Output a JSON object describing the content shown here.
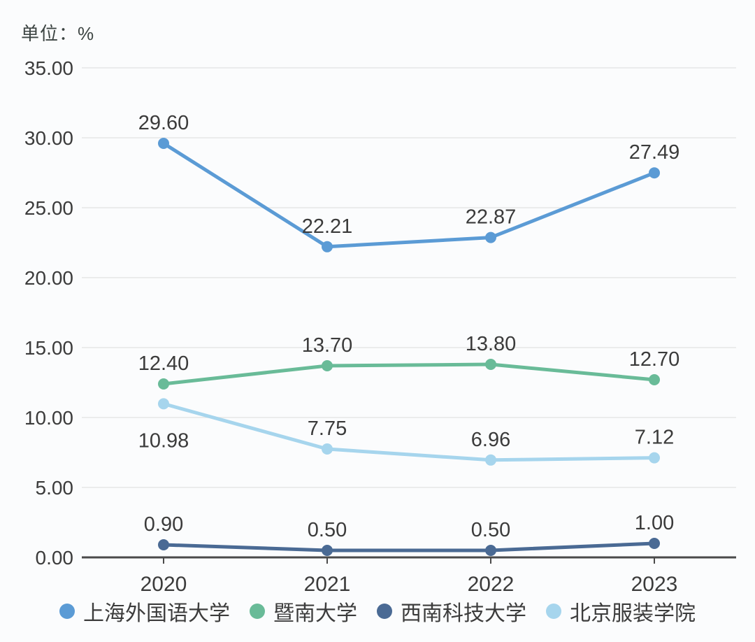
{
  "unit_label": "单位：%",
  "colors": {
    "background": "#fbfcfd",
    "grid": "#e6e6e6",
    "axis": "#4a4a4a",
    "text": "#3b3b3b"
  },
  "chart_data": {
    "type": "line",
    "title": "",
    "xlabel": "",
    "ylabel": "单位：%",
    "x": [
      "2020",
      "2021",
      "2022",
      "2023"
    ],
    "y_ticks": [
      "0.00",
      "5.00",
      "10.00",
      "15.00",
      "20.00",
      "25.00",
      "30.00",
      "35.00"
    ],
    "ylim": [
      0,
      35
    ],
    "grid": true,
    "legend_position": "bottom",
    "series": [
      {
        "name": "上海外国语大学",
        "color": "#5B9BD5",
        "values": [
          29.6,
          22.21,
          22.87,
          27.49
        ],
        "labels": [
          "29.60",
          "22.21",
          "22.87",
          "27.49"
        ],
        "label_positions": [
          "above",
          "above",
          "above",
          "above"
        ]
      },
      {
        "name": "暨南大学",
        "color": "#69BB98",
        "values": [
          12.4,
          13.7,
          13.8,
          12.7
        ],
        "labels": [
          "12.40",
          "13.70",
          "13.80",
          "12.70"
        ],
        "label_positions": [
          "above",
          "above",
          "above",
          "above"
        ]
      },
      {
        "name": "西南科技大学",
        "color": "#4A6A94",
        "values": [
          0.9,
          0.5,
          0.5,
          1.0
        ],
        "labels": [
          "0.90",
          "0.50",
          "0.50",
          "1.00"
        ],
        "label_positions": [
          "above",
          "above",
          "above",
          "above"
        ]
      },
      {
        "name": "北京服装学院",
        "color": "#A6D5ED",
        "values": [
          10.98,
          7.75,
          6.96,
          7.12
        ],
        "labels": [
          "10.98",
          "7.75",
          "6.96",
          "7.12"
        ],
        "label_positions": [
          "below",
          "above",
          "above",
          "above"
        ]
      }
    ]
  }
}
